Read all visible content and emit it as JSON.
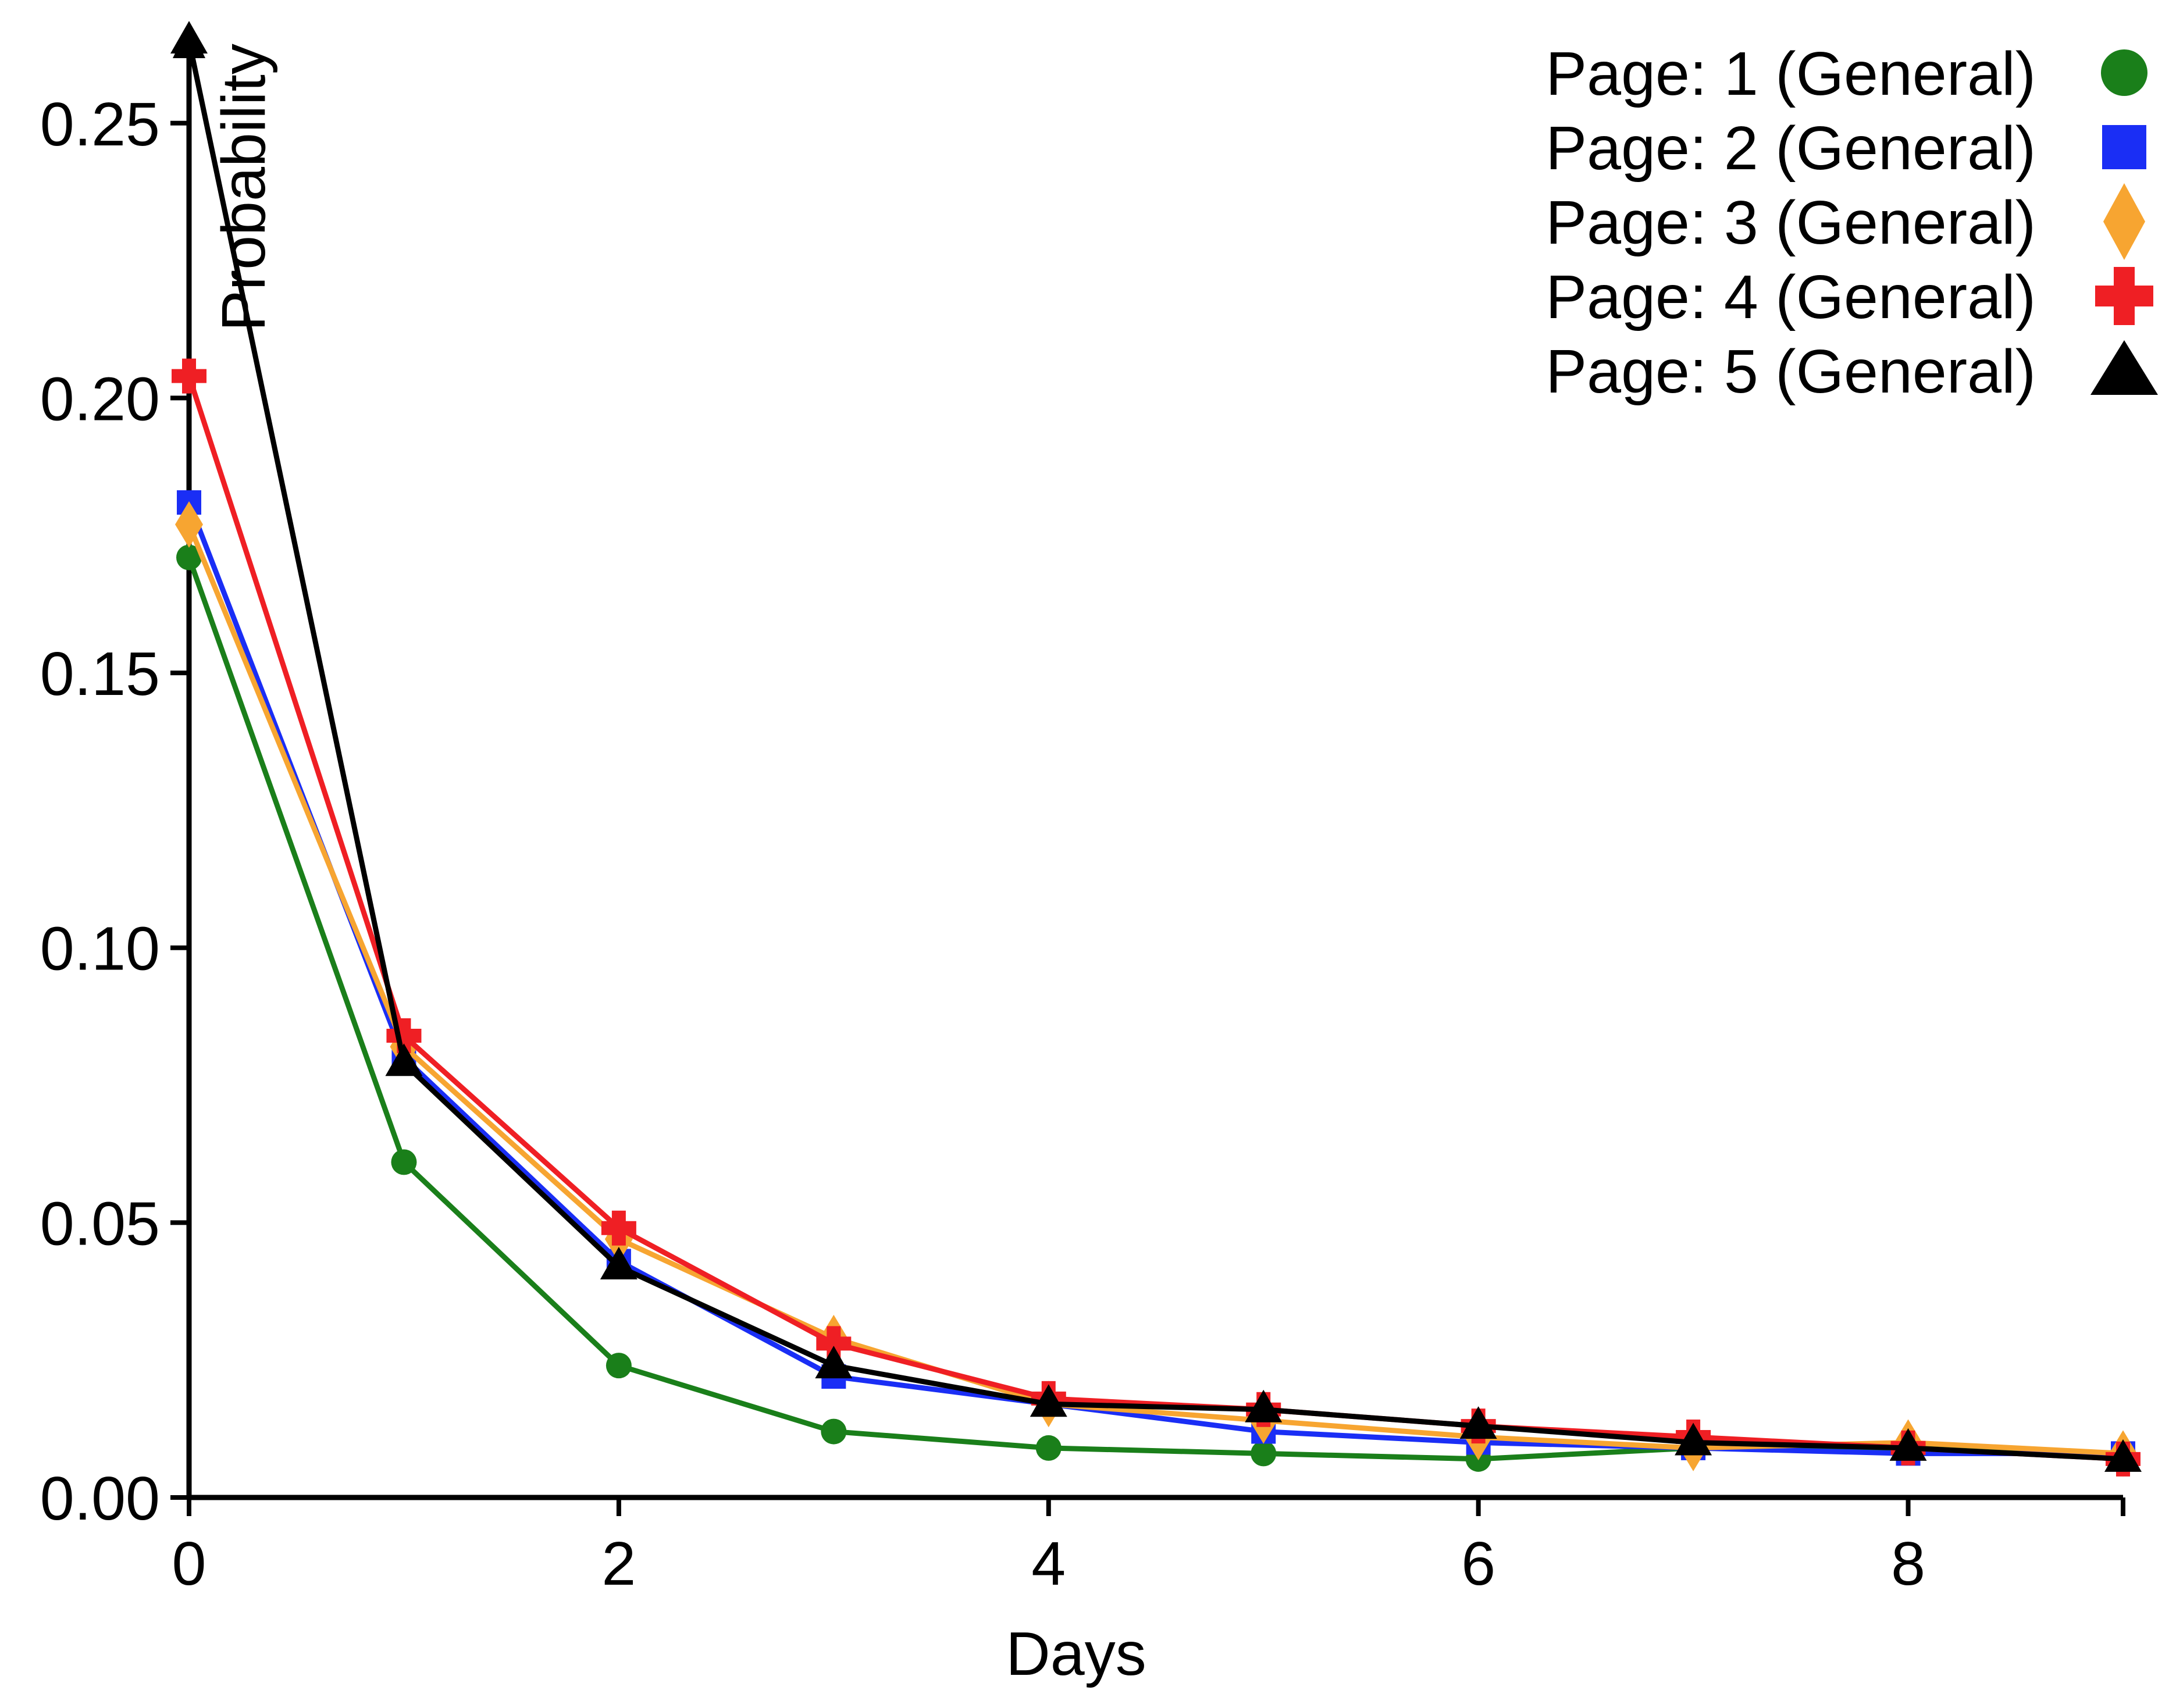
{
  "colors": {
    "page1": "#1a7f1a",
    "page2": "#1a2ef5",
    "page3": "#f7a531",
    "page4": "#ef1f24",
    "page5": "#000000",
    "axis": "#000000"
  },
  "chart_data": {
    "type": "line",
    "title": "",
    "xlabel": "Days",
    "ylabel": "Probability",
    "xlim": [
      0,
      9
    ],
    "ylim": [
      0,
      0.265
    ],
    "grid": false,
    "legend_position": "top-right",
    "x": [
      0,
      1,
      2,
      3,
      4,
      5,
      6,
      7,
      8,
      9
    ],
    "x_ticks": [
      0,
      2,
      4,
      6,
      8
    ],
    "x_tick_labels": [
      "0",
      "2",
      "4",
      "6",
      "8"
    ],
    "y_ticks": [
      0.0,
      0.05,
      0.1,
      0.15,
      0.2,
      0.25
    ],
    "y_tick_labels": [
      "0.00",
      "0.05",
      "0.10",
      "0.15",
      "0.20",
      "0.25"
    ],
    "series": [
      {
        "name": "Page: 1 (General)",
        "marker": "circle",
        "color": "#1a7f1a",
        "values": [
          0.171,
          0.061,
          0.024,
          0.012,
          0.009,
          0.008,
          0.007,
          0.009,
          0.009,
          0.008
        ]
      },
      {
        "name": "Page: 2 (General)",
        "marker": "square",
        "color": "#1a2ef5",
        "values": [
          0.181,
          0.08,
          0.043,
          0.022,
          0.017,
          0.012,
          0.01,
          0.009,
          0.008,
          0.008
        ]
      },
      {
        "name": "Page: 3 (General)",
        "marker": "diamond",
        "color": "#f7a531",
        "values": [
          0.177,
          0.082,
          0.047,
          0.029,
          0.017,
          0.014,
          0.011,
          0.009,
          0.01,
          0.008
        ]
      },
      {
        "name": "Page: 4 (General)",
        "marker": "plus",
        "color": "#ef1f24",
        "values": [
          0.204,
          0.084,
          0.049,
          0.028,
          0.018,
          0.016,
          0.013,
          0.011,
          0.009,
          0.007
        ]
      },
      {
        "name": "Page: 5 (General)",
        "marker": "triangle",
        "color": "#000000",
        "values": [
          0.265,
          0.079,
          0.042,
          0.024,
          0.017,
          0.016,
          0.013,
          0.01,
          0.009,
          0.007
        ]
      }
    ]
  }
}
